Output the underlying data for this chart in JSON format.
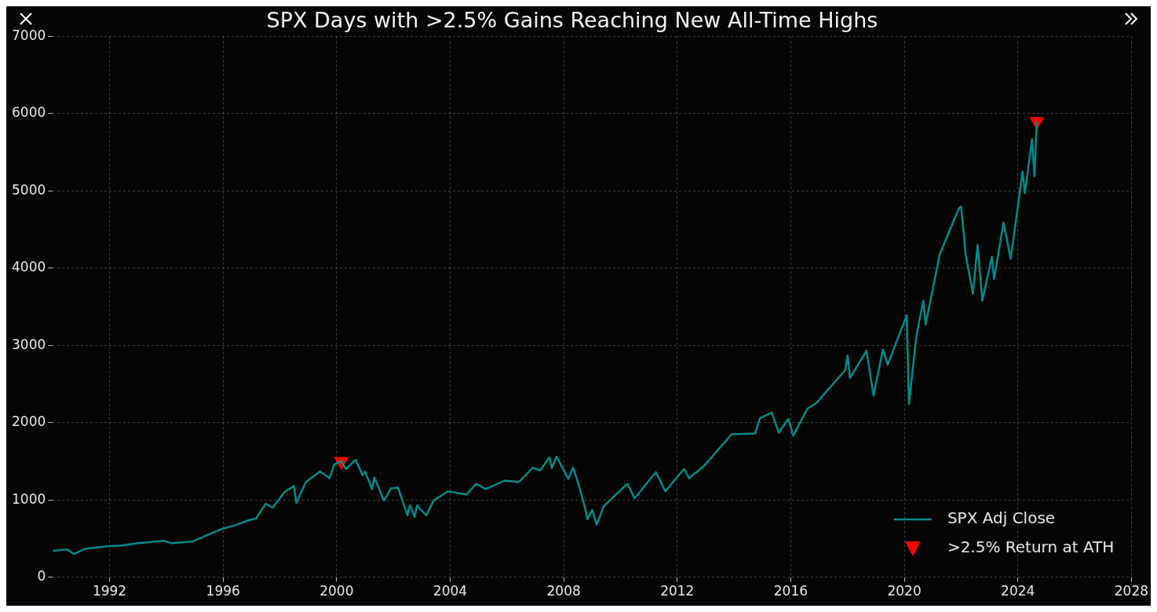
{
  "chart_data": {
    "type": "line",
    "title": "SPX Days with >2.5% Gains Reaching New All-Time Highs",
    "xlim": [
      "1990-01-01",
      "2028-01-01"
    ],
    "xticks": [
      "1992",
      "1996",
      "2000",
      "2004",
      "2008",
      "2012",
      "2016",
      "2020",
      "2024",
      "2028"
    ],
    "ylim": [
      0,
      7000
    ],
    "yticks": [
      0,
      1000,
      2000,
      3000,
      4000,
      5000,
      6000,
      7000
    ],
    "grid": true,
    "legend": "bottom right",
    "series": [
      {
        "name": "SPX Adj Close",
        "color": "#008b8b",
        "marker": "none",
        "line_style": "solid",
        "x": [
          "1990-01",
          "1990-07",
          "1990-10",
          "1991-03",
          "1991-12",
          "1992-06",
          "1993-01",
          "1993-12",
          "1994-03",
          "1994-12",
          "1995-06",
          "1995-12",
          "1996-06",
          "1996-12",
          "1997-03",
          "1997-07",
          "1997-10",
          "1998-03",
          "1998-07",
          "1998-08",
          "1998-12",
          "1999-06",
          "1999-10",
          "1999-12",
          "2000-03",
          "2000-05",
          "2000-09",
          "2000-12",
          "2001-01",
          "2001-04",
          "2001-05",
          "2001-09",
          "2001-12",
          "2002-03",
          "2002-07",
          "2002-08",
          "2002-10",
          "2002-11",
          "2003-03",
          "2003-06",
          "2003-12",
          "2004-08",
          "2004-12",
          "2005-04",
          "2005-12",
          "2006-06",
          "2006-12",
          "2007-03",
          "2007-07",
          "2007-08",
          "2007-10",
          "2008-03",
          "2008-05",
          "2008-07",
          "2008-10",
          "2008-11",
          "2009-01",
          "2009-03",
          "2009-06",
          "2010-04",
          "2010-07",
          "2011-04",
          "2011-08",
          "2011-12",
          "2012-04",
          "2012-06",
          "2012-12",
          "2013-12",
          "2014-10",
          "2014-12",
          "2015-05",
          "2015-08",
          "2015-12",
          "2016-02",
          "2016-08",
          "2016-12",
          "2017-12",
          "2018-01",
          "2018-02",
          "2018-09",
          "2018-12",
          "2019-04",
          "2019-06",
          "2019-12",
          "2020-02",
          "2020-03",
          "2020-06",
          "2020-09",
          "2020-10",
          "2021-04",
          "2021-12",
          "2022-01",
          "2022-03",
          "2022-06",
          "2022-08",
          "2022-10",
          "2023-02",
          "2023-03",
          "2023-07",
          "2023-10",
          "2024-03",
          "2024-04",
          "2024-07",
          "2024-08",
          "2024-09"
        ],
        "values": [
          340,
          360,
          300,
          370,
          400,
          410,
          440,
          470,
          440,
          460,
          540,
          620,
          670,
          740,
          760,
          950,
          900,
          1100,
          1180,
          960,
          1230,
          1370,
          1280,
          1460,
          1500,
          1400,
          1520,
          1320,
          1370,
          1140,
          1290,
          990,
          1150,
          1160,
          800,
          930,
          780,
          930,
          800,
          990,
          1110,
          1070,
          1210,
          1140,
          1250,
          1230,
          1420,
          1380,
          1550,
          1410,
          1560,
          1270,
          1420,
          1230,
          900,
          750,
          870,
          680,
          920,
          1210,
          1020,
          1360,
          1110,
          1260,
          1400,
          1280,
          1430,
          1850,
          1860,
          2060,
          2130,
          1870,
          2050,
          1830,
          2180,
          2260,
          2680,
          2870,
          2580,
          2930,
          2350,
          2950,
          2750,
          3230,
          3390,
          2240,
          3100,
          3580,
          3270,
          4180,
          4770,
          4800,
          4170,
          3670,
          4300,
          3580,
          4150,
          3860,
          4590,
          4120,
          5250,
          4970,
          5670,
          5190,
          5900
        ]
      },
      {
        "name": ">2.5% Return at ATH",
        "type": "scatter",
        "color": "#ff0000",
        "marker": "triangle",
        "x": [
          "2000-03",
          "2024-09"
        ],
        "values": [
          1500,
          5900
        ]
      }
    ]
  }
}
